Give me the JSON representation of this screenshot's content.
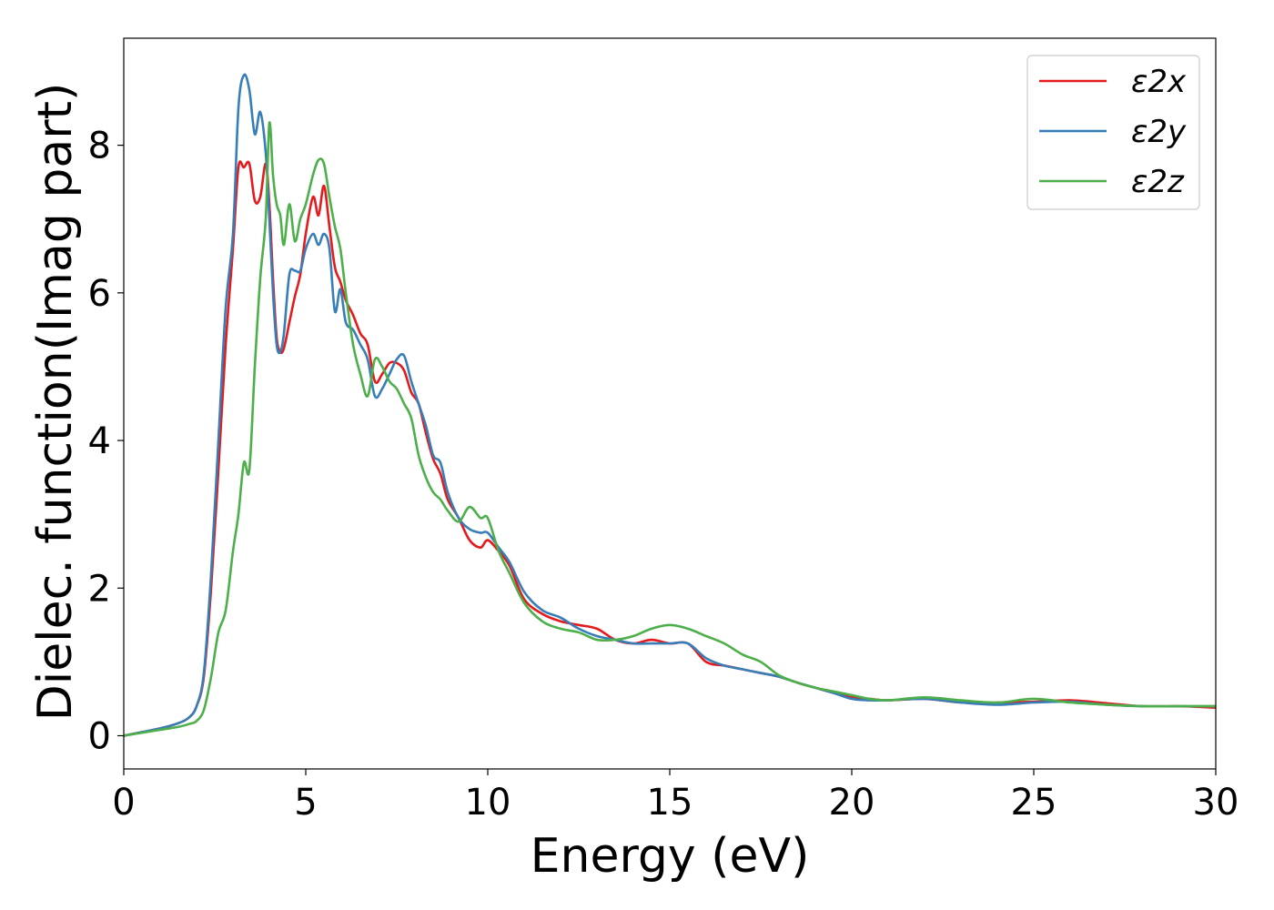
{
  "chart_data": {
    "type": "line",
    "title": "",
    "xlabel": "Energy (eV)",
    "ylabel": "Dielec. function(Imag part)",
    "xlim": [
      0,
      30
    ],
    "ylim": [
      -0.45,
      9.45
    ],
    "xticks": [
      0,
      5,
      10,
      15,
      20,
      25,
      30
    ],
    "xtick_labels": [
      "0",
      "5",
      "10",
      "15",
      "20",
      "25",
      "30"
    ],
    "yticks": [
      0,
      2,
      4,
      6,
      8
    ],
    "ytick_labels": [
      "0",
      "2",
      "4",
      "6",
      "8"
    ],
    "grid": false,
    "legend_position": "top-right",
    "series": [
      {
        "name": "ε2x",
        "color": "#e41a1c",
        "x": [
          0,
          1,
          1.5,
          1.8,
          2.0,
          2.2,
          2.4,
          2.6,
          2.8,
          3.0,
          3.15,
          3.3,
          3.45,
          3.6,
          3.75,
          3.9,
          4.0,
          4.1,
          4.2,
          4.3,
          4.4,
          4.55,
          4.7,
          4.85,
          5.0,
          5.2,
          5.35,
          5.5,
          5.65,
          5.8,
          5.95,
          6.1,
          6.3,
          6.5,
          6.7,
          6.9,
          7.1,
          7.3,
          7.5,
          7.7,
          7.9,
          8.1,
          8.3,
          8.5,
          8.7,
          8.9,
          9.2,
          9.5,
          9.8,
          10.0,
          10.3,
          10.6,
          11.0,
          11.5,
          12.0,
          12.5,
          13.0,
          13.5,
          14.0,
          14.5,
          15.0,
          15.5,
          16.0,
          16.5,
          17.0,
          17.5,
          18.0,
          18.5,
          19.0,
          19.5,
          20.0,
          20.5,
          21.0,
          22.0,
          23.0,
          24.0,
          25.0,
          26.0,
          27.0,
          28.0,
          29.0,
          30.0
        ],
        "y": [
          0.0,
          0.1,
          0.17,
          0.25,
          0.4,
          0.8,
          2.0,
          3.6,
          5.3,
          6.6,
          7.7,
          7.7,
          7.75,
          7.25,
          7.3,
          7.75,
          7.2,
          6.2,
          5.4,
          5.2,
          5.25,
          5.6,
          5.95,
          6.25,
          6.8,
          7.3,
          7.05,
          7.45,
          6.9,
          6.35,
          6.15,
          5.9,
          5.7,
          5.45,
          5.3,
          4.8,
          4.9,
          5.05,
          5.05,
          4.95,
          4.65,
          4.5,
          4.1,
          3.75,
          3.55,
          3.2,
          2.95,
          2.65,
          2.55,
          2.65,
          2.5,
          2.3,
          1.85,
          1.65,
          1.55,
          1.5,
          1.45,
          1.3,
          1.25,
          1.3,
          1.25,
          1.25,
          1.0,
          0.95,
          0.9,
          0.85,
          0.8,
          0.72,
          0.65,
          0.58,
          0.52,
          0.5,
          0.48,
          0.5,
          0.45,
          0.45,
          0.46,
          0.48,
          0.44,
          0.4,
          0.4,
          0.38
        ]
      },
      {
        "name": "ε2y",
        "color": "#377eb8",
        "x": [
          0,
          1,
          1.5,
          1.8,
          2.0,
          2.2,
          2.4,
          2.6,
          2.8,
          3.0,
          3.15,
          3.3,
          3.45,
          3.6,
          3.75,
          3.9,
          4.0,
          4.1,
          4.2,
          4.3,
          4.4,
          4.55,
          4.7,
          4.85,
          5.0,
          5.2,
          5.35,
          5.5,
          5.65,
          5.8,
          5.95,
          6.1,
          6.3,
          6.5,
          6.7,
          6.9,
          7.1,
          7.3,
          7.5,
          7.7,
          7.9,
          8.1,
          8.3,
          8.5,
          8.7,
          8.9,
          9.2,
          9.5,
          9.8,
          10.0,
          10.3,
          10.6,
          11.0,
          11.5,
          12.0,
          12.5,
          13.0,
          13.5,
          14.0,
          14.5,
          15.0,
          15.5,
          16.0,
          16.5,
          17.0,
          17.5,
          18.0,
          18.5,
          19.0,
          19.5,
          20.0,
          20.5,
          21.0,
          22.0,
          23.0,
          24.0,
          25.0,
          26.0,
          27.0,
          28.0,
          29.0,
          30.0
        ],
        "y": [
          0.0,
          0.1,
          0.17,
          0.25,
          0.4,
          0.85,
          2.2,
          4.0,
          5.8,
          6.8,
          8.5,
          8.95,
          8.75,
          8.15,
          8.45,
          7.9,
          7.0,
          6.0,
          5.3,
          5.2,
          5.45,
          6.25,
          6.3,
          6.3,
          6.6,
          6.8,
          6.65,
          6.8,
          6.6,
          5.75,
          6.05,
          5.6,
          5.5,
          5.3,
          5.1,
          4.6,
          4.7,
          4.9,
          5.1,
          5.15,
          4.8,
          4.5,
          4.2,
          3.8,
          3.7,
          3.3,
          2.95,
          2.8,
          2.75,
          2.75,
          2.55,
          2.35,
          1.95,
          1.7,
          1.6,
          1.45,
          1.35,
          1.3,
          1.25,
          1.25,
          1.25,
          1.25,
          1.05,
          0.95,
          0.9,
          0.85,
          0.8,
          0.72,
          0.65,
          0.58,
          0.5,
          0.48,
          0.48,
          0.5,
          0.45,
          0.42,
          0.45,
          0.46,
          0.42,
          0.4,
          0.4,
          0.4
        ]
      },
      {
        "name": "ε2z",
        "color": "#4daf4a",
        "x": [
          0,
          1,
          1.5,
          1.8,
          2.0,
          2.2,
          2.4,
          2.6,
          2.8,
          3.0,
          3.15,
          3.3,
          3.45,
          3.6,
          3.75,
          3.9,
          4.0,
          4.1,
          4.2,
          4.3,
          4.4,
          4.55,
          4.7,
          4.85,
          5.0,
          5.2,
          5.35,
          5.5,
          5.65,
          5.8,
          5.95,
          6.1,
          6.3,
          6.5,
          6.7,
          6.9,
          7.1,
          7.3,
          7.5,
          7.7,
          7.9,
          8.1,
          8.3,
          8.5,
          8.7,
          8.9,
          9.2,
          9.5,
          9.8,
          10.0,
          10.3,
          10.6,
          11.0,
          11.5,
          12.0,
          12.5,
          13.0,
          13.5,
          14.0,
          14.5,
          15.0,
          15.5,
          16.0,
          16.5,
          17.0,
          17.5,
          18.0,
          18.5,
          19.0,
          19.5,
          20.0,
          20.5,
          21.0,
          22.0,
          23.0,
          24.0,
          25.0,
          26.0,
          27.0,
          28.0,
          29.0,
          30.0
        ],
        "y": [
          0.0,
          0.08,
          0.12,
          0.16,
          0.2,
          0.35,
          0.8,
          1.4,
          1.7,
          2.5,
          3.0,
          3.7,
          3.6,
          5.0,
          6.2,
          7.0,
          8.3,
          7.6,
          7.2,
          7.05,
          6.65,
          7.2,
          6.7,
          7.0,
          7.2,
          7.6,
          7.8,
          7.75,
          7.3,
          6.9,
          6.6,
          6.0,
          5.3,
          4.9,
          4.6,
          5.1,
          5.0,
          4.8,
          4.7,
          4.5,
          4.3,
          3.8,
          3.5,
          3.3,
          3.2,
          3.05,
          2.9,
          3.1,
          2.95,
          2.95,
          2.5,
          2.2,
          1.8,
          1.55,
          1.45,
          1.4,
          1.3,
          1.3,
          1.35,
          1.45,
          1.5,
          1.45,
          1.35,
          1.25,
          1.1,
          1.0,
          0.82,
          0.72,
          0.65,
          0.6,
          0.55,
          0.5,
          0.48,
          0.52,
          0.48,
          0.45,
          0.5,
          0.45,
          0.42,
          0.4,
          0.4,
          0.4
        ]
      }
    ]
  }
}
